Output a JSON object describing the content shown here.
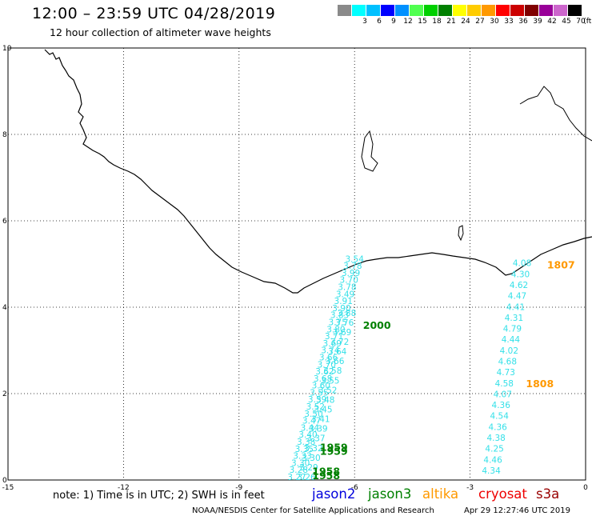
{
  "header": {
    "title": "12:00 – 23:59 UTC 04/28/2019",
    "subtitle": "12 hour collection of altimeter wave heights"
  },
  "legend": {
    "unit": "(ft)",
    "items": [
      {
        "label": "",
        "color": "#8a8a8a"
      },
      {
        "label": "3",
        "color": "#00ffff"
      },
      {
        "label": "6",
        "color": "#00c0ff"
      },
      {
        "label": "9",
        "color": "#0000ff"
      },
      {
        "label": "12",
        "color": "#0090ff"
      },
      {
        "label": "15",
        "color": "#50ff50"
      },
      {
        "label": "18",
        "color": "#00d000"
      },
      {
        "label": "21",
        "color": "#008000"
      },
      {
        "label": "24",
        "color": "#ffff00"
      },
      {
        "label": "27",
        "color": "#ffcc00"
      },
      {
        "label": "30",
        "color": "#ff9900"
      },
      {
        "label": "33",
        "color": "#ff0000"
      },
      {
        "label": "36",
        "color": "#cc0000"
      },
      {
        "label": "39",
        "color": "#800000"
      },
      {
        "label": "42",
        "color": "#990099"
      },
      {
        "label": "45",
        "color": "#cc66cc"
      },
      {
        "label": "70",
        "color": "#000000"
      }
    ]
  },
  "map": {
    "lon_range": [
      -15,
      0
    ],
    "lat_range": [
      0,
      10
    ],
    "lon_ticks": [
      "-15",
      "-12",
      "-9",
      "-6",
      "-3",
      "0"
    ],
    "lat_ticks": [
      "0",
      "2",
      "4",
      "6",
      "8",
      "10"
    ],
    "colors": {
      "track": "#33e0e8",
      "time_green": "#008000",
      "time_orange": "#ff9900",
      "coast": "#000000"
    },
    "tracks": [
      {
        "name": "east",
        "values": [
          "4.08",
          "4.30",
          "4.62",
          "4.47",
          "4.41",
          "4.31",
          "4.79",
          "4.44",
          "4.02",
          "4.68",
          "4.73",
          "4.58",
          "4.07",
          "4.36",
          "4.54",
          "4.36",
          "4.38",
          "4.25",
          "4.46",
          "4.34"
        ],
        "points": [
          [
            -1.65,
            4.95
          ],
          [
            -2.45,
            0.15
          ]
        ]
      },
      {
        "name": "west-a",
        "values": [
          "3.54",
          "3.78",
          "3.99",
          "3.70",
          "3.78",
          "3.49",
          "3.91",
          "3.90",
          "3.83",
          "3.75",
          "3.80",
          "3.71",
          "3.69",
          "3.74",
          "3.66",
          "3.70",
          "3.62",
          "3.68",
          "3.60",
          "3.55",
          "3.59",
          "3.52",
          "3.50",
          "3.47",
          "3.44",
          "3.40",
          "3.38",
          "3.35",
          "3.33",
          "3.30",
          "3.28",
          "3.27"
        ],
        "points": [
          [
            -6.0,
            5.05
          ],
          [
            -7.5,
            0.0
          ]
        ]
      },
      {
        "name": "west-b",
        "values": [
          "3.88",
          "3.76",
          "3.69",
          "3.72",
          "3.64",
          "3.66",
          "3.58",
          "3.55",
          "3.52",
          "3.48",
          "3.45",
          "3.41",
          "3.39",
          "3.37",
          "3.32",
          "3.30",
          "3.29",
          "3.26"
        ],
        "points": [
          [
            -6.2,
            3.8
          ],
          [
            -7.25,
            0.0
          ]
        ]
      }
    ],
    "time_labels": [
      {
        "text": "1807",
        "lon": -1.0,
        "lat": 4.9,
        "color": "orange"
      },
      {
        "text": "1808",
        "lon": -1.55,
        "lat": 2.15,
        "color": "orange"
      },
      {
        "text": "2000",
        "lon": -5.78,
        "lat": 3.5,
        "color": "green"
      },
      {
        "text": "1959",
        "lon": -6.9,
        "lat": 0.68,
        "color": "green"
      },
      {
        "text": "1959",
        "lon": -6.9,
        "lat": 0.58,
        "color": "green"
      },
      {
        "text": "1958",
        "lon": -7.1,
        "lat": 0.12,
        "color": "green"
      },
      {
        "text": "1958",
        "lon": -7.1,
        "lat": 0.02,
        "color": "green"
      }
    ]
  },
  "note": "note:  1) Time is in UTC;  2) SWH is in feet",
  "satellites": [
    {
      "label": "jason2",
      "color": "#0000dd"
    },
    {
      "label": "jason3",
      "color": "#008000"
    },
    {
      "label": "altika",
      "color": "#ff9900"
    },
    {
      "label": "cryosat",
      "color": "#ee0000"
    },
    {
      "label": "s3a",
      "color": "#990000"
    }
  ],
  "footer": {
    "center": "NOAA/NESDIS Center for Satellite Applications and Research",
    "timestamp": "Apr 29 12:27:46 UTC 2019"
  }
}
